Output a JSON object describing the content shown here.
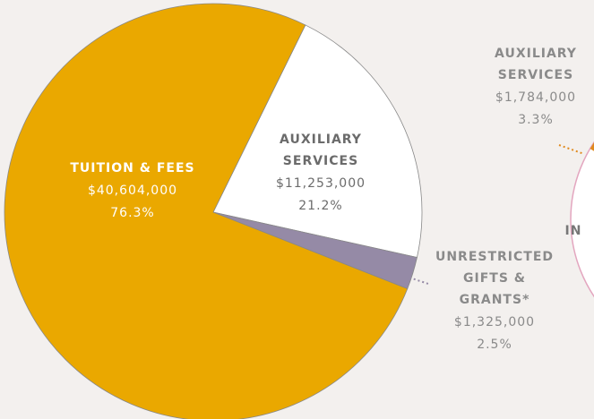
{
  "chart_data": [
    {
      "type": "pie",
      "categories": [
        [
          "AUXILIARY",
          "SERVICES"
        ],
        [
          "UNRESTRICTED",
          "GIFTS &",
          "GRANTS*"
        ],
        [
          "TUITION & FEES"
        ]
      ],
      "values": [
        21.2,
        2.5,
        76.3
      ],
      "value_labels": [
        "21.2%",
        "2.5%",
        "76.3%"
      ],
      "amount_labels": [
        "$11,253,000",
        "$1,325,000",
        "$40,604,000"
      ],
      "colors": [
        "#ffffff",
        "#958aa6",
        "#eaa800"
      ]
    },
    {
      "type": "pie",
      "categories": [
        [
          "AUXILIARY",
          "SERVICES"
        ]
      ],
      "values": [
        3.3
      ],
      "value_labels": [
        "3.3%"
      ],
      "amount_labels": [
        "$1,784,000"
      ],
      "colors": [
        "#e08a1e"
      ],
      "annotations": [
        "IN"
      ]
    }
  ]
}
